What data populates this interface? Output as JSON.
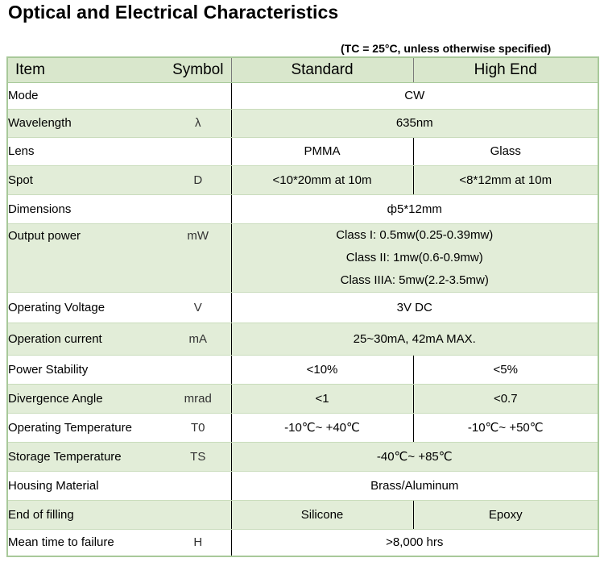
{
  "title": "Optical and Electrical Characteristics",
  "condition": "(TC = 25°C, unless otherwise specified)",
  "table": {
    "headers": {
      "item": "Item",
      "symbol": "Symbol",
      "standard": "Standard",
      "high_end": "High End"
    },
    "rows": [
      {
        "item": "Mode",
        "symbol": "",
        "value": "CW"
      },
      {
        "item": "Wavelength",
        "symbol": "λ",
        "value": "635nm"
      },
      {
        "item": "Lens",
        "symbol": "",
        "standard": "PMMA",
        "high_end": "Glass"
      },
      {
        "item": "Spot",
        "symbol": "D",
        "standard": "<10*20mm at 10m",
        "high_end": "<8*12mm at 10m"
      },
      {
        "item": "Dimensions",
        "symbol": "",
        "value": "ф5*12mm"
      },
      {
        "item": "Output power",
        "symbol": "mW",
        "lines": [
          "Class I: 0.5mw(0.25-0.39mw)",
          "Class II: 1mw(0.6-0.9mw)",
          "Class IIIA: 5mw(2.2-3.5mw)"
        ]
      },
      {
        "item": "Operating Voltage",
        "symbol": "V",
        "value": "3V DC"
      },
      {
        "item": "Operation current",
        "symbol": "mA",
        "value": "25~30mA, 42mA MAX."
      },
      {
        "item": "Power Stability",
        "symbol": "",
        "standard": "<10%",
        "high_end": "<5%"
      },
      {
        "item": "Divergence Angle",
        "symbol": "mrad",
        "standard": "<1",
        "high_end": "<0.7"
      },
      {
        "item": "Operating Temperature",
        "symbol": "T0",
        "standard": "-10℃~ +40℃",
        "high_end": "-10℃~ +50℃"
      },
      {
        "item": "Storage Temperature",
        "symbol": "TS",
        "value": "-40℃~ +85℃"
      },
      {
        "item": "Housing Material",
        "symbol": "",
        "value": "Brass/Aluminum"
      },
      {
        "item": "End of filling",
        "symbol": "",
        "standard": "Silicone",
        "high_end": "Epoxy"
      },
      {
        "item": "Mean time to failure",
        "symbol": "H",
        "value": ">8,000 hrs"
      }
    ]
  }
}
